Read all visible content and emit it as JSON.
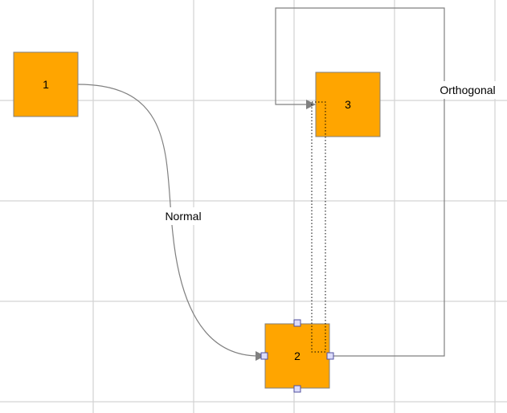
{
  "nodes": [
    {
      "id": "1",
      "label": "1",
      "fill": "#ffa500"
    },
    {
      "id": "2",
      "label": "2",
      "fill": "#ffa500"
    },
    {
      "id": "3",
      "label": "3",
      "fill": "#ffa500"
    }
  ],
  "edges": [
    {
      "from": "1",
      "to": "2",
      "label": "Normal",
      "style": "curved"
    },
    {
      "from": "2",
      "to": "3",
      "label": "Orthogonal",
      "style": "orthogonal"
    }
  ],
  "colors": {
    "grid": "#d3d3d3",
    "edge": "#808080",
    "node_border": "#808080",
    "handle_fill": "#dcdcfa",
    "handle_border": "#5050a0"
  }
}
